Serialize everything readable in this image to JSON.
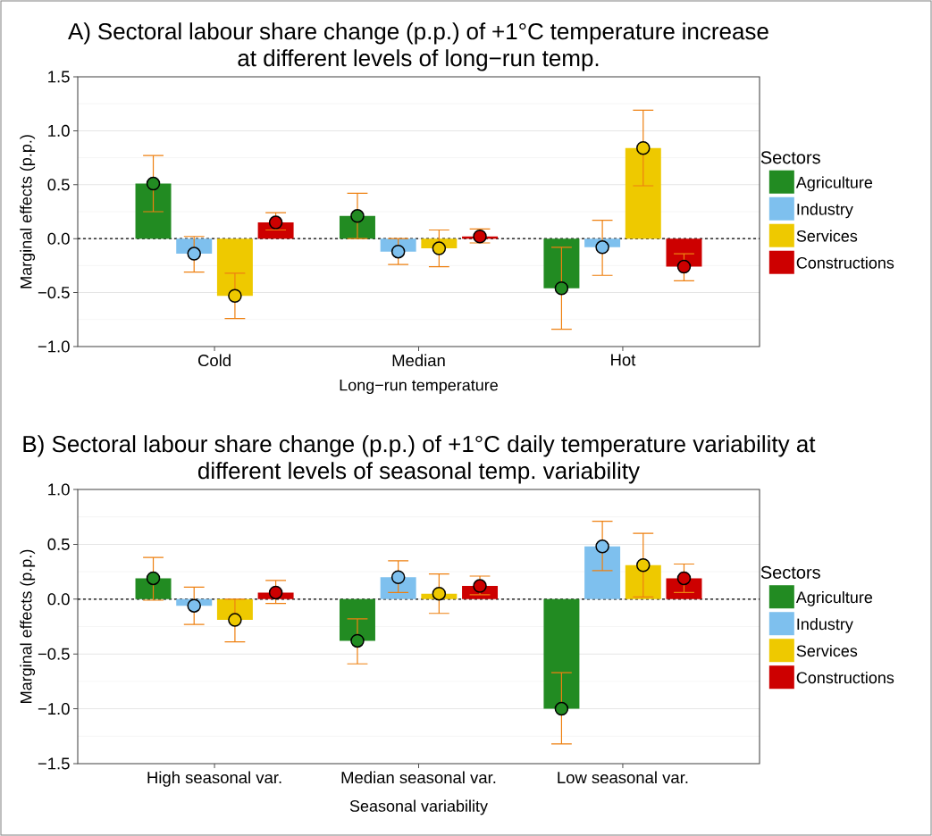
{
  "chart_data": [
    {
      "type": "bar",
      "title": "A) Sectoral labour share change (p.p.) of +1°C temperature increase at different levels of long−run temp.",
      "xlabel": "Long−run temperature",
      "ylabel": "Marginal effects (p.p.)",
      "legend_title": "Sectors",
      "categories": [
        "Cold",
        "Median",
        "Hot"
      ],
      "series": [
        {
          "name": "Agriculture",
          "color": "#228b22",
          "values": [
            0.51,
            0.21,
            -0.46
          ],
          "errors": [
            [
              0.25,
              0.77
            ],
            [
              0.0,
              0.42
            ],
            [
              -0.84,
              -0.08
            ]
          ]
        },
        {
          "name": "Industry",
          "color": "#7ec0ee",
          "values": [
            -0.14,
            -0.12,
            -0.08
          ],
          "errors": [
            [
              -0.31,
              0.02
            ],
            [
              -0.24,
              0.0
            ],
            [
              -0.34,
              0.17
            ]
          ]
        },
        {
          "name": "Services",
          "color": "#eec900",
          "values": [
            -0.53,
            -0.09,
            0.84
          ],
          "errors": [
            [
              -0.74,
              -0.32
            ],
            [
              -0.26,
              0.08
            ],
            [
              0.49,
              1.19
            ]
          ]
        },
        {
          "name": "Constructions",
          "color": "#cd0000",
          "values": [
            0.15,
            0.02,
            -0.26
          ],
          "errors": [
            [
              0.08,
              0.24
            ],
            [
              -0.04,
              0.09
            ],
            [
              -0.39,
              -0.14
            ]
          ]
        },
        {
          "type": "scatter",
          "marker": "circle",
          "color": "#228b22",
          "x": [
            "Cold",
            "Median",
            "Hot"
          ],
          "values": [
            0.51,
            0.21,
            -0.46
          ]
        },
        {
          "type": "scatter",
          "marker": "circle",
          "color": "#7ec0ee",
          "x": [
            "Cold",
            "Median",
            "Hot"
          ],
          "values": [
            -0.14,
            -0.12,
            -0.08
          ]
        },
        {
          "type": "scatter",
          "marker": "circle",
          "color": "#eec900",
          "x": [
            "Cold",
            "Median",
            "Hot"
          ],
          "values": [
            -0.53,
            -0.09,
            0.84
          ]
        },
        {
          "type": "scatter",
          "marker": "circle",
          "color": "#cd0000",
          "x": [
            "Cold",
            "Median",
            "Hot"
          ],
          "values": [
            0.15,
            0.02,
            -0.26
          ]
        }
      ],
      "ylim": [
        -1.0,
        1.5
      ],
      "yticks": [
        {
          "value": -1.0,
          "label": "−1.0"
        },
        {
          "value": -0.5,
          "label": "−0.5"
        },
        {
          "value": 0.0,
          "label": "0.0"
        },
        {
          "value": 0.5,
          "label": "0.5"
        },
        {
          "value": 1.0,
          "label": "1.0"
        },
        {
          "value": 1.5,
          "label": "1.5"
        }
      ],
      "ref_lines": [
        {
          "axis": "y",
          "value": 0,
          "color": "#000000",
          "line_style": "dashed"
        }
      ],
      "grid": "y",
      "legend": "right"
    },
    {
      "type": "bar",
      "title": "B) Sectoral labour share change (p.p.) of +1°C daily temperature variability at different levels of seasonal temp. variability",
      "xlabel": "Seasonal variability",
      "ylabel": "Marginal effects (p.p.)",
      "legend_title": "Sectors",
      "categories": [
        "High seasonal var.",
        "Median seasonal var.",
        "Low seasonal var."
      ],
      "series": [
        {
          "name": "Agriculture",
          "color": "#228b22",
          "values": [
            0.19,
            -0.38,
            -1.0
          ],
          "errors": [
            [
              -0.01,
              0.38
            ],
            [
              -0.59,
              -0.18
            ],
            [
              -1.32,
              -0.67
            ]
          ]
        },
        {
          "name": "Industry",
          "color": "#7ec0ee",
          "values": [
            -0.06,
            0.2,
            0.48
          ],
          "errors": [
            [
              -0.23,
              0.11
            ],
            [
              0.06,
              0.35
            ],
            [
              0.26,
              0.71
            ]
          ]
        },
        {
          "name": "Services",
          "color": "#eec900",
          "values": [
            -0.19,
            0.05,
            0.31
          ],
          "errors": [
            [
              -0.39,
              0.0
            ],
            [
              -0.13,
              0.23
            ],
            [
              0.02,
              0.6
            ]
          ]
        },
        {
          "name": "Constructions",
          "color": "#cd0000",
          "values": [
            0.06,
            0.12,
            0.19
          ],
          "errors": [
            [
              -0.04,
              0.17
            ],
            [
              0.04,
              0.21
            ],
            [
              0.06,
              0.32
            ]
          ]
        },
        {
          "type": "scatter",
          "marker": "circle",
          "color": "#228b22",
          "x": [
            "High seasonal var.",
            "Median seasonal var.",
            "Low seasonal var."
          ],
          "values": [
            0.19,
            -0.38,
            -1.0
          ]
        },
        {
          "type": "scatter",
          "marker": "circle",
          "color": "#7ec0ee",
          "x": [
            "High seasonal var.",
            "Median seasonal var.",
            "Low seasonal var."
          ],
          "values": [
            -0.06,
            0.2,
            0.48
          ]
        },
        {
          "type": "scatter",
          "marker": "circle",
          "color": "#eec900",
          "x": [
            "High seasonal var.",
            "Median seasonal var.",
            "Low seasonal var."
          ],
          "values": [
            -0.19,
            0.05,
            0.31
          ]
        },
        {
          "type": "scatter",
          "marker": "circle",
          "color": "#cd0000",
          "x": [
            "High seasonal var.",
            "Median seasonal var.",
            "Low seasonal var."
          ],
          "values": [
            0.06,
            0.12,
            0.19
          ]
        }
      ],
      "ylim": [
        -1.5,
        1.0
      ],
      "yticks": [
        {
          "value": -1.5,
          "label": "−1.5"
        },
        {
          "value": -1.0,
          "label": "−1.0"
        },
        {
          "value": -0.5,
          "label": "−0.5"
        },
        {
          "value": 0.0,
          "label": "0.0"
        },
        {
          "value": 0.5,
          "label": "0.5"
        },
        {
          "value": 1.0,
          "label": "1.0"
        }
      ],
      "ref_lines": [
        {
          "axis": "y",
          "value": 0,
          "color": "#000000",
          "line_style": "dashed"
        }
      ],
      "grid": "y",
      "legend": "right"
    }
  ]
}
